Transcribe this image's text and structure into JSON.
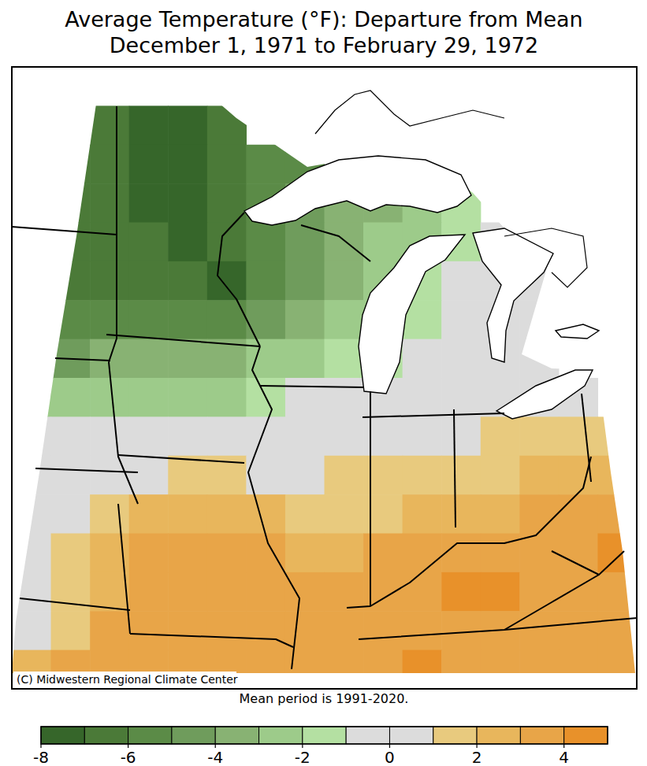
{
  "chart_data": {
    "type": "heatmap",
    "title": "Average Temperature (°F): Departure from Mean",
    "subtitle": "December 1, 1971 to February 29, 1972",
    "caption": "Mean period is 1991-2020.",
    "credit": "(C) Midwestern Regional Climate Center",
    "cells": [
      [
        null,
        null,
        null,
        null,
        null,
        null,
        null,
        null,
        null,
        null,
        null,
        null,
        null,
        null,
        null,
        null
      ],
      [
        null,
        null,
        -6.5,
        -7.5,
        -7.5,
        -6.5,
        null,
        null,
        null,
        null,
        null,
        null,
        null,
        null,
        null,
        null
      ],
      [
        null,
        -6.5,
        -6.8,
        -7.5,
        -7.5,
        -7,
        -6,
        -5.5,
        null,
        null,
        null,
        null,
        null,
        null,
        null,
        null
      ],
      [
        -6.5,
        -6.5,
        -6.8,
        -7.2,
        -7.5,
        -6.5,
        -5.5,
        -5,
        -4,
        -3.5,
        -2.5,
        -1.5,
        null,
        null,
        null,
        null
      ],
      [
        -6.5,
        -6.8,
        -7,
        -7,
        -7.5,
        -7,
        -6,
        -4.5,
        -3.5,
        -3,
        -2.5,
        -1.5,
        -0.5,
        null,
        null,
        null
      ],
      [
        -6,
        -6.5,
        -6.8,
        -6.5,
        -7,
        -7.2,
        -5.5,
        -4.5,
        -3.5,
        -2.5,
        -1.5,
        -0.5,
        -0.3,
        0,
        null,
        null
      ],
      [
        -6,
        -5.5,
        -5.5,
        -5.5,
        -6,
        -5.5,
        -4.5,
        -3.8,
        -3,
        -2.2,
        -1.2,
        -0.5,
        -0.3,
        -0.2,
        null,
        null
      ],
      [
        -4.5,
        -4.5,
        -3.8,
        -3.5,
        -3.5,
        -3.5,
        -3,
        -2.5,
        -2,
        -1.5,
        -0.5,
        -0.3,
        -0.2,
        0,
        null,
        null
      ],
      [
        -2.5,
        -2.5,
        -2.2,
        -2.3,
        -2.5,
        -2.2,
        -1.5,
        -0.8,
        -0.5,
        -0.5,
        -0.3,
        0,
        0.2,
        0.5,
        0.8,
        null
      ],
      [
        -0.5,
        -0.8,
        -0.8,
        -0.8,
        -1,
        -0.8,
        -0.5,
        -0.3,
        0,
        0.3,
        0.5,
        0.8,
        1.5,
        1.5,
        1.5,
        1.2
      ],
      [
        -0.3,
        -0.3,
        -0.2,
        0.8,
        1.5,
        1.2,
        0.5,
        0.6,
        1.5,
        1.5,
        1.2,
        1.5,
        1.8,
        2.2,
        2.5,
        2.5
      ],
      [
        -0.3,
        0.5,
        1.5,
        2.2,
        2.3,
        2.5,
        2,
        1.8,
        1.8,
        1.8,
        2.2,
        2.2,
        2.8,
        3.2,
        3.5,
        3.5
      ],
      [
        0.2,
        1.5,
        2.5,
        3.2,
        3.2,
        3,
        3.2,
        2.8,
        2.6,
        3,
        3.2,
        3.5,
        3.8,
        3.5,
        3.8,
        4.3
      ],
      [
        -0.2,
        1.5,
        2.8,
        3.3,
        3.5,
        3.2,
        3.5,
        3.6,
        3.3,
        3.5,
        3.7,
        4.2,
        4.1,
        3.8,
        3.5,
        3.8
      ],
      [
        0.5,
        1.8,
        3,
        3.5,
        3.6,
        3.7,
        3.8,
        3.8,
        3.5,
        3.6,
        3.5,
        3.8,
        3.8,
        3.7,
        3.5,
        3.6
      ],
      [
        2.5,
        3,
        3.5,
        3.5,
        3.6,
        3.7,
        3.7,
        3.8,
        3.8,
        3.9,
        4.2,
        3.8,
        3.6,
        3.6,
        3.5,
        3.6
      ]
    ],
    "colorbar": {
      "range": [
        -8,
        5
      ],
      "ticks": [
        -8,
        -6,
        -4,
        -2,
        0,
        2,
        4
      ],
      "colors": [
        "#36662a",
        "#4b7a38",
        "#5b8b47",
        "#6f9c5c",
        "#88b273",
        "#9dcb8a",
        "#b4e0a2",
        "#dcdcdc",
        "#dcdcdc",
        "#e8ca7e",
        "#e8b65c",
        "#e8a548",
        "#e8912a"
      ]
    }
  }
}
